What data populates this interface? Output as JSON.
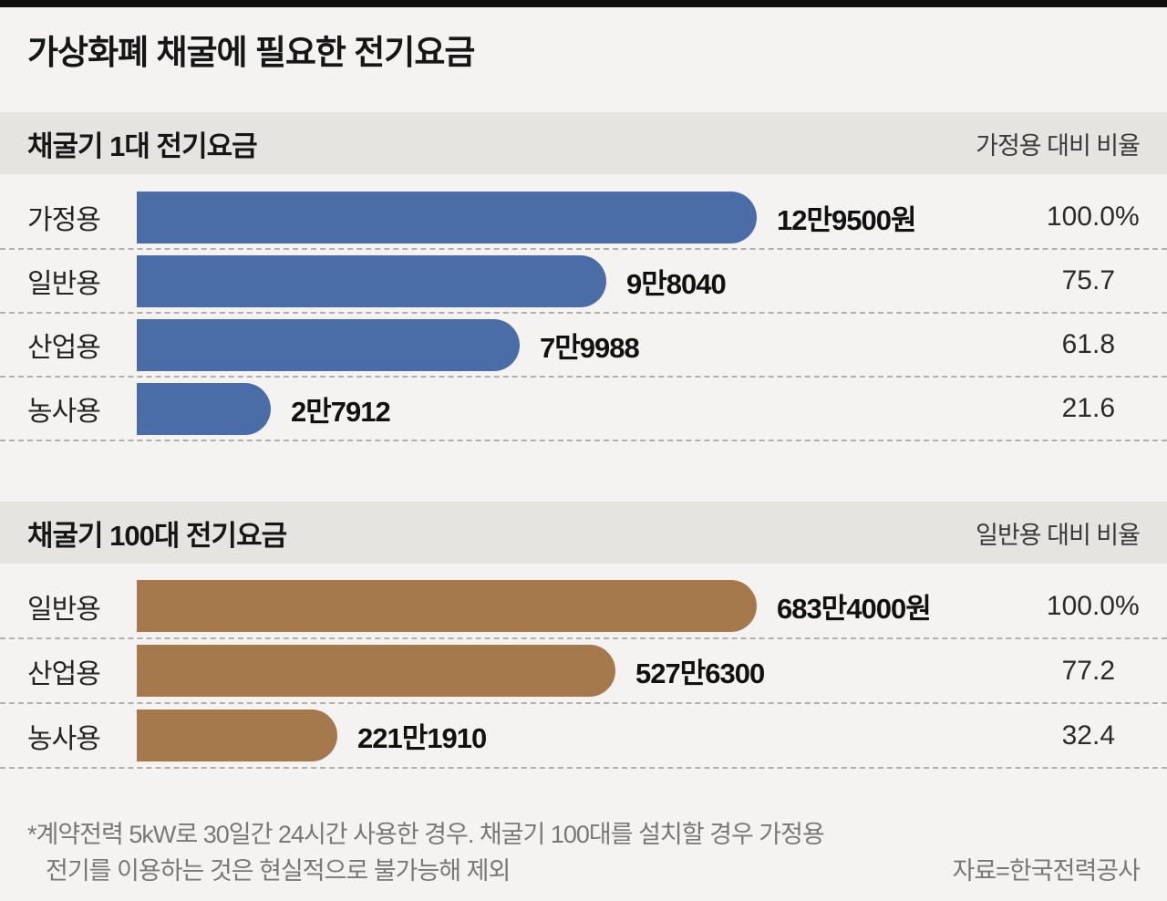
{
  "page": {
    "title": "가상화폐 채굴에 필요한 전기요금",
    "footnote_line1": "*계약전력 5kW로 30일간 24시간 사용한 경우. 채굴기 100대를 설치할 경우 가정용",
    "footnote_line2": "전기를 이용하는 것은 현실적으로 불가능해 제외",
    "source": "자료=한국전력공사"
  },
  "colors": {
    "page_bg": "#f4f3f1",
    "top_strip": "#0f0f0f",
    "band_bg": "#e6e4e1",
    "bar_blue": "#4a6ca7",
    "bar_brown": "#a5794b",
    "dashed_line": "#b2b0ad",
    "footnote_text": "#7a7876"
  },
  "sections": [
    {
      "title": "채굴기 1대 전기요금",
      "ratio_header": "가정용 대비 비율",
      "bar_color": "#4a6ca7",
      "rows": [
        {
          "category": "가정용",
          "value_label": "12만9500원",
          "ratio": 100.0,
          "ratio_label": "100.0",
          "ratio_suffix": "%"
        },
        {
          "category": "일반용",
          "value_label": "9만8040",
          "ratio": 75.7,
          "ratio_label": "75.7",
          "ratio_suffix": ""
        },
        {
          "category": "산업용",
          "value_label": "7만9988",
          "ratio": 61.8,
          "ratio_label": "61.8",
          "ratio_suffix": ""
        },
        {
          "category": "농사용",
          "value_label": "2만7912",
          "ratio": 21.6,
          "ratio_label": "21.6",
          "ratio_suffix": ""
        }
      ]
    },
    {
      "title": "채굴기 100대 전기요금",
      "ratio_header": "일반용 대비 비율",
      "bar_color": "#a5794b",
      "rows": [
        {
          "category": "일반용",
          "value_label": "683만4000원",
          "ratio": 100.0,
          "ratio_label": "100.0",
          "ratio_suffix": "%"
        },
        {
          "category": "산업용",
          "value_label": "527만6300",
          "ratio": 77.2,
          "ratio_label": "77.2",
          "ratio_suffix": ""
        },
        {
          "category": "농사용",
          "value_label": "221만1910",
          "ratio": 32.4,
          "ratio_label": "32.4",
          "ratio_suffix": ""
        }
      ]
    }
  ],
  "chart_data": [
    {
      "type": "bar",
      "orientation": "horizontal",
      "title": "채굴기 1대 전기요금",
      "unit": "원",
      "categories": [
        "가정용",
        "일반용",
        "산업용",
        "농사용"
      ],
      "values": [
        129500,
        98040,
        79988,
        27912
      ],
      "value_labels": [
        "12만9500원",
        "9만8040",
        "7만9988",
        "2만7912"
      ],
      "ratio_header": "가정용 대비 비율",
      "ratios_pct": [
        100.0,
        75.7,
        61.8,
        21.6
      ],
      "bar_color": "#4a6ca7",
      "grid": "dashed-row-separators",
      "legend": "none"
    },
    {
      "type": "bar",
      "orientation": "horizontal",
      "title": "채굴기 100대 전기요금",
      "unit": "원",
      "categories": [
        "일반용",
        "산업용",
        "농사용"
      ],
      "values": [
        6834000,
        5276300,
        2211910
      ],
      "value_labels": [
        "683만4000원",
        "527만6300",
        "221만1910"
      ],
      "ratio_header": "일반용 대비 비율",
      "ratios_pct": [
        100.0,
        77.2,
        32.4
      ],
      "bar_color": "#a5794b",
      "grid": "dashed-row-separators",
      "legend": "none"
    }
  ]
}
